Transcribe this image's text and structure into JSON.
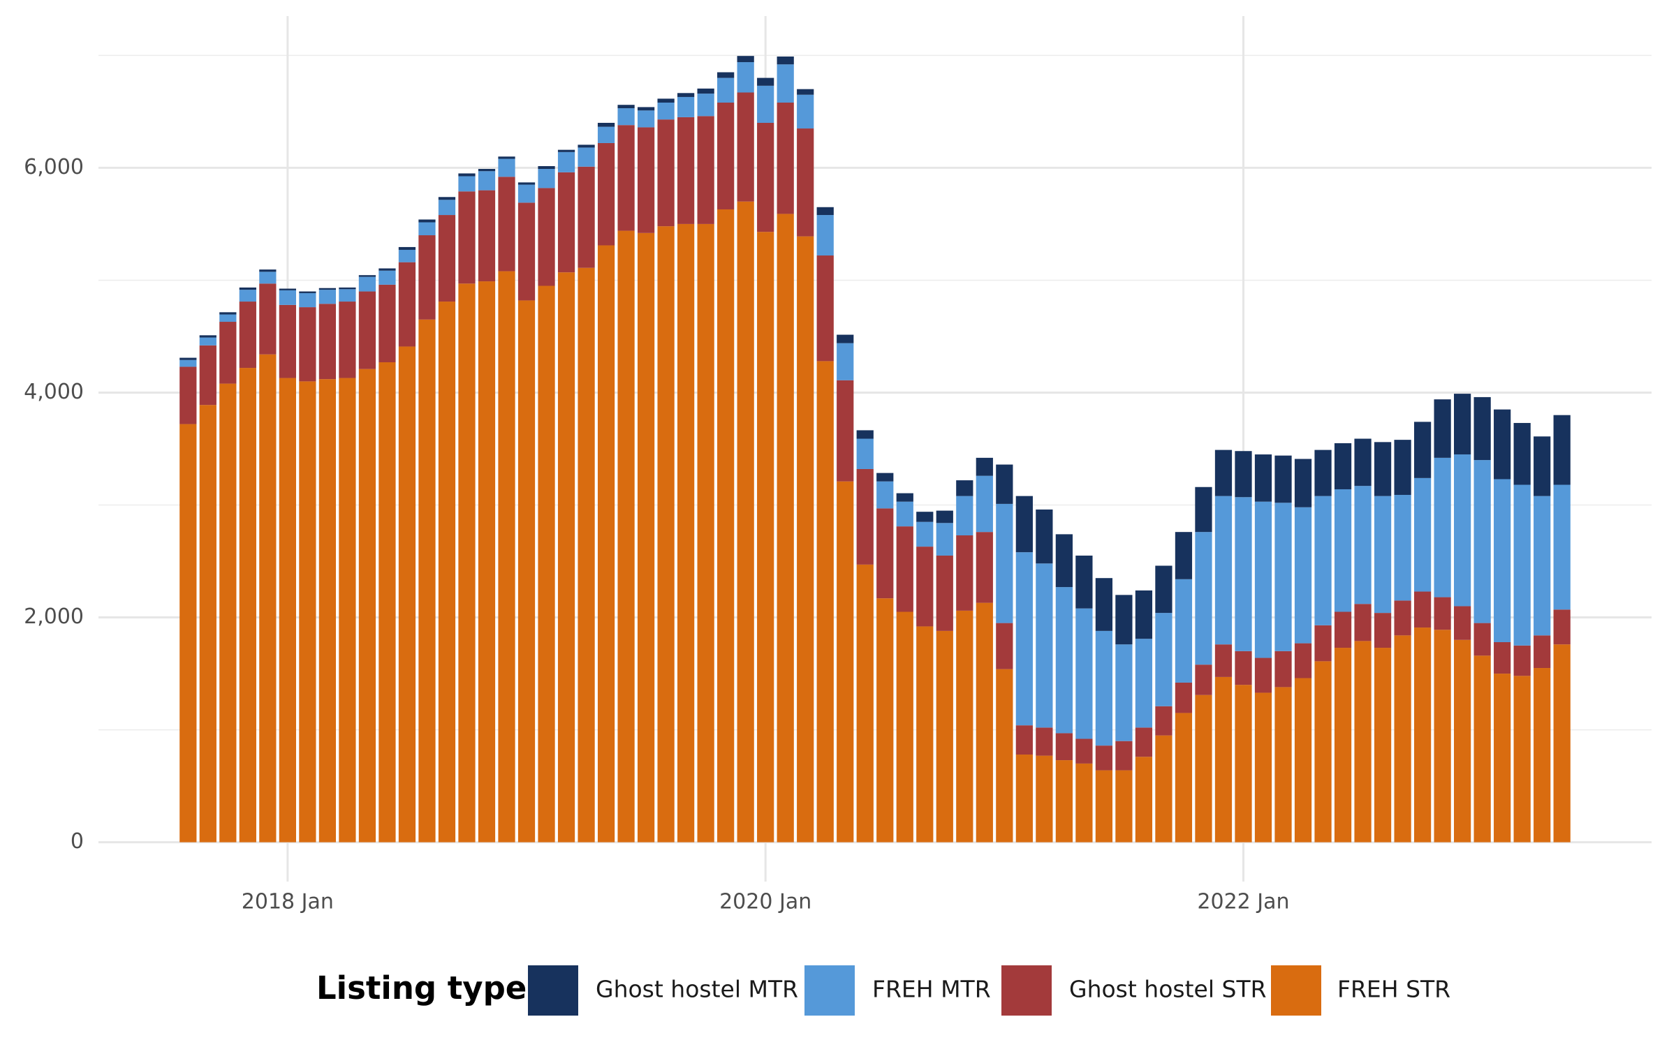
{
  "chart_data": {
    "type": "stacked_bar",
    "legend_title": "Listing type",
    "x": [
      "2017-08",
      "2017-09",
      "2017-10",
      "2017-11",
      "2017-12",
      "2018-01",
      "2018-02",
      "2018-03",
      "2018-04",
      "2018-05",
      "2018-06",
      "2018-07",
      "2018-08",
      "2018-09",
      "2018-10",
      "2018-11",
      "2018-12",
      "2019-01",
      "2019-02",
      "2019-03",
      "2019-04",
      "2019-05",
      "2019-06",
      "2019-07",
      "2019-08",
      "2019-09",
      "2019-10",
      "2019-11",
      "2019-12",
      "2020-01",
      "2020-02",
      "2020-03",
      "2020-04",
      "2020-05",
      "2020-06",
      "2020-07",
      "2020-08",
      "2020-09",
      "2020-10",
      "2020-11",
      "2020-12",
      "2021-01",
      "2021-02",
      "2021-03",
      "2021-04",
      "2021-05",
      "2021-06",
      "2021-07",
      "2021-08",
      "2021-09",
      "2021-10",
      "2021-11",
      "2021-12",
      "2022-01",
      "2022-02",
      "2022-03",
      "2022-04",
      "2022-05",
      "2022-06",
      "2022-07",
      "2022-08",
      "2022-09",
      "2022-10",
      "2022-11",
      "2022-12",
      "2023-01",
      "2023-02",
      "2023-03",
      "2023-04",
      "2023-05"
    ],
    "xticks": [
      {
        "value": "2018-01",
        "label": "2018 Jan"
      },
      {
        "value": "2020-01",
        "label": "2020 Jan"
      },
      {
        "value": "2022-01",
        "label": "2022 Jan"
      }
    ],
    "series": [
      {
        "name": "FREH STR",
        "color": "#d96c10",
        "values": [
          3720,
          3890,
          4080,
          4220,
          4340,
          4130,
          4100,
          4120,
          4130,
          4210,
          4270,
          4410,
          4650,
          4810,
          4970,
          4990,
          5080,
          4820,
          4950,
          5070,
          5110,
          5310,
          5440,
          5420,
          5480,
          5500,
          5500,
          5630,
          5700,
          5430,
          5590,
          5390,
          4280,
          3210,
          2470,
          2170,
          2050,
          1920,
          1880,
          2060,
          2130,
          1540,
          780,
          770,
          730,
          700,
          640,
          640,
          760,
          950,
          1150,
          1310,
          1470,
          1400,
          1330,
          1380,
          1460,
          1610,
          1730,
          1790,
          1730,
          1840,
          1910,
          1890,
          1800,
          1660,
          1500,
          1480,
          1550,
          1760
        ]
      },
      {
        "name": "Ghost hostel STR",
        "color": "#a33a3b",
        "values": [
          510,
          530,
          550,
          590,
          630,
          650,
          660,
          670,
          680,
          690,
          690,
          750,
          750,
          770,
          820,
          810,
          840,
          870,
          870,
          890,
          900,
          910,
          940,
          940,
          950,
          950,
          960,
          950,
          970,
          970,
          990,
          960,
          940,
          900,
          850,
          800,
          760,
          710,
          670,
          670,
          630,
          410,
          260,
          250,
          240,
          220,
          220,
          260,
          260,
          260,
          270,
          270,
          290,
          300,
          310,
          320,
          310,
          320,
          320,
          330,
          310,
          310,
          320,
          290,
          300,
          290,
          280,
          270,
          290,
          310
        ]
      },
      {
        "name": "FREH MTR",
        "color": "#5599d9",
        "values": [
          60,
          70,
          65,
          105,
          105,
          130,
          125,
          125,
          110,
          130,
          125,
          110,
          115,
          135,
          135,
          170,
          160,
          160,
          170,
          180,
          170,
          145,
          150,
          150,
          150,
          180,
          200,
          220,
          270,
          330,
          340,
          300,
          360,
          330,
          270,
          240,
          220,
          220,
          290,
          350,
          500,
          1060,
          1540,
          1460,
          1300,
          1160,
          1020,
          860,
          790,
          830,
          920,
          1180,
          1320,
          1370,
          1390,
          1320,
          1210,
          1150,
          1090,
          1050,
          1040,
          940,
          1010,
          1240,
          1350,
          1450,
          1450,
          1430,
          1240,
          1110
        ]
      },
      {
        "name": "Ghost hostel MTR",
        "color": "#17325d",
        "values": [
          20,
          20,
          20,
          20,
          20,
          15,
          15,
          15,
          15,
          15,
          20,
          25,
          25,
          25,
          25,
          20,
          20,
          20,
          25,
          20,
          25,
          35,
          30,
          30,
          35,
          35,
          45,
          50,
          55,
          70,
          70,
          50,
          70,
          75,
          75,
          75,
          75,
          90,
          110,
          140,
          160,
          350,
          500,
          480,
          470,
          470,
          470,
          440,
          430,
          420,
          420,
          400,
          410,
          410,
          420,
          420,
          430,
          410,
          410,
          420,
          480,
          490,
          500,
          520,
          540,
          560,
          620,
          550,
          530,
          620
        ]
      }
    ],
    "ylim": [
      -350,
      7350
    ],
    "yticks": [
      0,
      {
        "value": 2000,
        "label": "2,000"
      },
      {
        "value": 4000,
        "label": "4,000"
      },
      {
        "value": 6000,
        "label": "6,000"
      }
    ],
    "minor_grid": [
      1000,
      3000,
      5000,
      7000
    ],
    "grid": true,
    "legend": "bottom"
  }
}
